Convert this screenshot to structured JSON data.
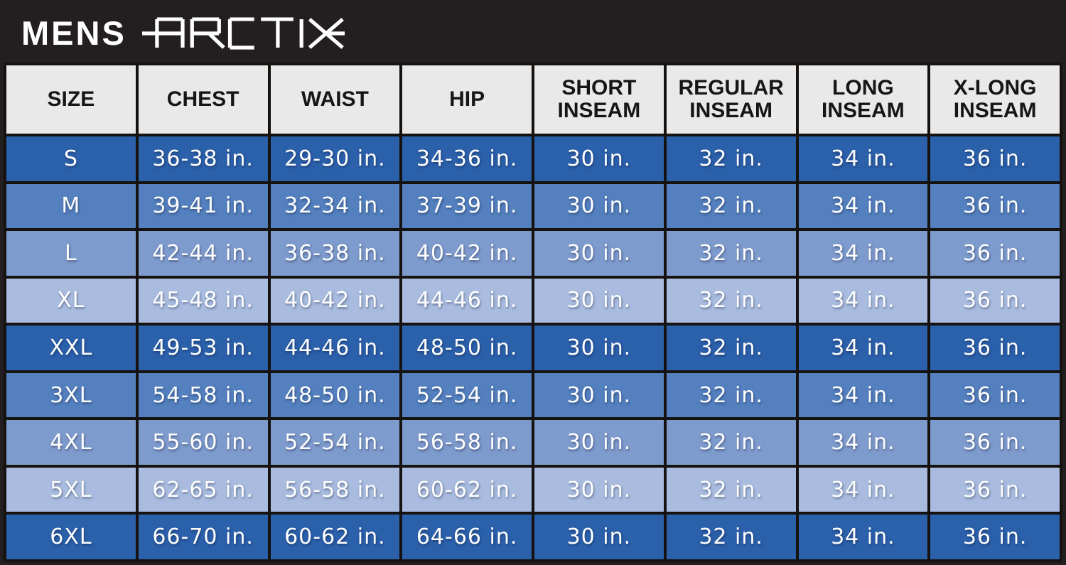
{
  "header": {
    "title": "MENS",
    "brand": "ARCTIX"
  },
  "chart_data": {
    "type": "table",
    "columns": [
      "SIZE",
      "CHEST",
      "WAIST",
      "HIP",
      "SHORT INSEAM",
      "REGULAR INSEAM",
      "LONG INSEAM",
      "X-LONG INSEAM"
    ],
    "rows": [
      {
        "shade": "dark",
        "cells": [
          "S",
          "36-38 in.",
          "29-30 in.",
          "34-36 in.",
          "30 in.",
          "32 in.",
          "34 in.",
          "36 in."
        ]
      },
      {
        "shade": "medium",
        "cells": [
          "M",
          "39-41 in.",
          "32-34 in.",
          "37-39 in.",
          "30 in.",
          "32 in.",
          "34 in.",
          "36 in."
        ]
      },
      {
        "shade": "medium-light",
        "cells": [
          "L",
          "42-44 in.",
          "36-38 in.",
          "40-42 in.",
          "30 in.",
          "32 in.",
          "34 in.",
          "36 in."
        ]
      },
      {
        "shade": "light",
        "cells": [
          "XL",
          "45-48 in.",
          "40-42 in.",
          "44-46 in.",
          "30 in.",
          "32 in.",
          "34 in.",
          "36 in."
        ]
      },
      {
        "shade": "dark",
        "cells": [
          "XXL",
          "49-53 in.",
          "44-46 in.",
          "48-50 in.",
          "30 in.",
          "32 in.",
          "34 in.",
          "36 in."
        ]
      },
      {
        "shade": "medium",
        "cells": [
          "3XL",
          "54-58 in.",
          "48-50 in.",
          "52-54 in.",
          "30 in.",
          "32 in.",
          "34 in.",
          "36 in."
        ]
      },
      {
        "shade": "medium-light",
        "cells": [
          "4XL",
          "55-60 in.",
          "52-54 in.",
          "56-58 in.",
          "30 in.",
          "32 in.",
          "34 in.",
          "36 in."
        ]
      },
      {
        "shade": "light",
        "cells": [
          "5XL",
          "62-65 in.",
          "56-58 in.",
          "60-62 in.",
          "30 in.",
          "32 in.",
          "34 in.",
          "36 in."
        ]
      },
      {
        "shade": "dark",
        "cells": [
          "6XL",
          "66-70 in.",
          "60-62 in.",
          "64-66 in.",
          "30 in.",
          "32 in.",
          "34 in.",
          "36 in."
        ]
      }
    ]
  },
  "colors": {
    "bar_black": "#231f20",
    "grid_black": "#15120f",
    "header_cell": "#e9e9e9",
    "row_dark": "#2b60ab",
    "row_medium": "#5480bf",
    "row_medium_light": "#7e9bcd",
    "row_light": "#a9bcdf",
    "text_white": "#ffffff",
    "text_black": "#161616"
  }
}
